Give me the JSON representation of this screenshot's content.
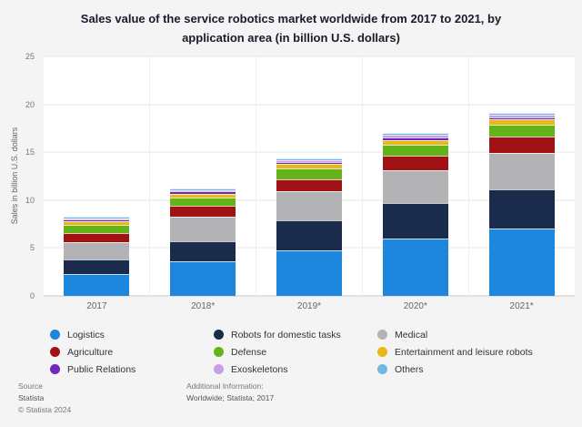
{
  "chart": {
    "title_line1": "Sales value of the service robotics market worldwide from 2017 to 2021, by",
    "title_line2": "application area (in billion U.S. dollars)",
    "ylabel": "Sales in billion U.S. dollars"
  },
  "chart_data": {
    "type": "bar",
    "stacked": true,
    "title": "Sales value of the service robotics market worldwide from 2017 to 2021, by application area (in billion U.S. dollars)",
    "xlabel": "",
    "ylabel": "Sales in billion U.S. dollars",
    "ymax": 25,
    "ylim": [
      0,
      25
    ],
    "yticks": [
      0,
      5,
      10,
      15,
      20,
      25
    ],
    "grid": "horizontal",
    "legend_position": "bottom",
    "categories": [
      "2017",
      "2018*",
      "2019*",
      "2020*",
      "2021*"
    ],
    "series": [
      {
        "name": "Logistics",
        "color": "#1c87dd",
        "values": [
          2.3,
          3.6,
          4.8,
          6.0,
          7.0
        ]
      },
      {
        "name": "Robots for domestic tasks",
        "color": "#1a2b4c",
        "values": [
          1.5,
          2.1,
          3.1,
          3.7,
          4.1
        ]
      },
      {
        "name": "Medical",
        "color": "#b3b3b5",
        "values": [
          1.8,
          2.6,
          3.0,
          3.4,
          3.8
        ]
      },
      {
        "name": "Agriculture",
        "color": "#a11215",
        "values": [
          1.0,
          1.1,
          1.3,
          1.5,
          1.7
        ]
      },
      {
        "name": "Defense",
        "color": "#65b31b",
        "values": [
          0.8,
          0.9,
          1.1,
          1.2,
          1.3
        ]
      },
      {
        "name": "Entertainment and leisure robots",
        "color": "#eab812",
        "values": [
          0.4,
          0.4,
          0.5,
          0.5,
          0.5
        ]
      },
      {
        "name": "Public Relations",
        "color": "#7127bc",
        "values": [
          0.15,
          0.2,
          0.2,
          0.25,
          0.25
        ]
      },
      {
        "name": "Exoskeletons",
        "color": "#c79fe8",
        "values": [
          0.15,
          0.15,
          0.2,
          0.25,
          0.25
        ]
      },
      {
        "name": "Others",
        "color": "#70b6e6",
        "values": [
          0.15,
          0.15,
          0.2,
          0.2,
          0.2
        ]
      }
    ],
    "totals": [
      8.25,
      11.2,
      14.4,
      17.0,
      19.1
    ]
  },
  "footer": {
    "source_label": "Source",
    "source_name": "Statista",
    "copyright": "© Statista 2024",
    "additional_label": "Additional Information:",
    "additional_value": "Worldwide; Statista; 2017"
  }
}
